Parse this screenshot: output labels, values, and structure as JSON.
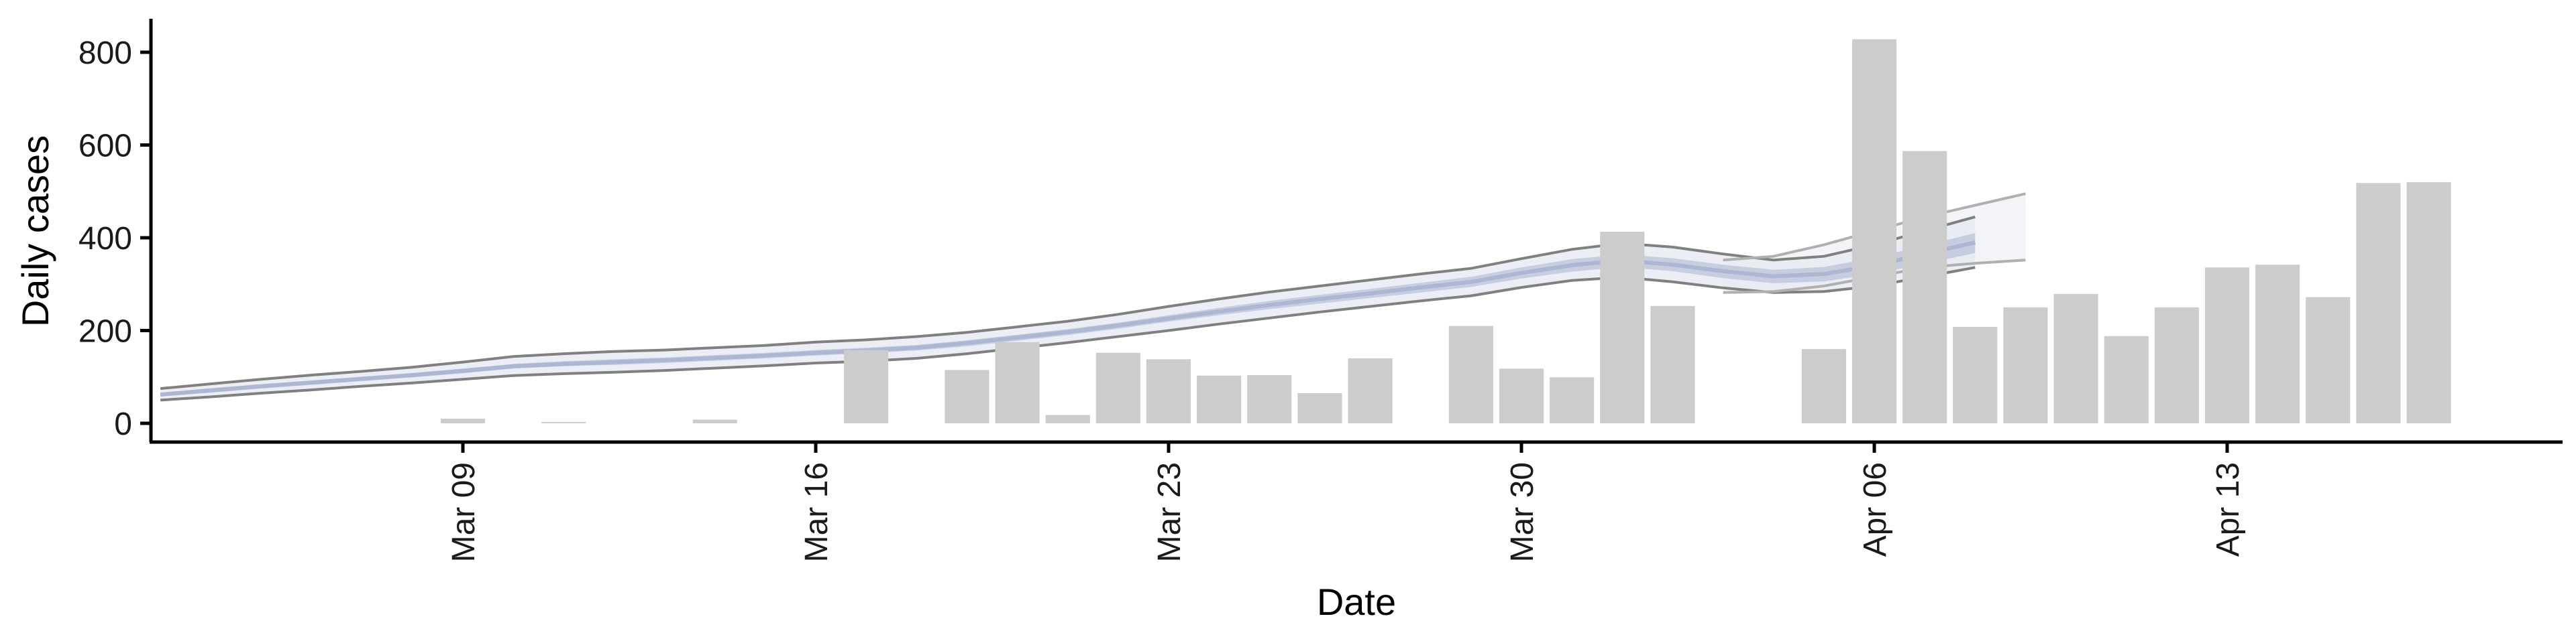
{
  "chart_data": {
    "type": "bar",
    "title": "",
    "xlabel": "Date",
    "ylabel": "Daily cases",
    "x_start": "2020-03-03",
    "ylim": [
      -40,
      870
    ],
    "y_ticks": [
      0,
      200,
      400,
      600,
      800
    ],
    "x_ticks": [
      {
        "date": "2020-03-09",
        "label": "Mar 09"
      },
      {
        "date": "2020-03-16",
        "label": "Mar 16"
      },
      {
        "date": "2020-03-23",
        "label": "Mar 23"
      },
      {
        "date": "2020-03-30",
        "label": "Mar 30"
      },
      {
        "date": "2020-04-06",
        "label": "Apr 06"
      },
      {
        "date": "2020-04-13",
        "label": "Apr 13"
      }
    ],
    "grid": false,
    "legend": "none",
    "bars": {
      "name": "",
      "color": "#cccccc",
      "points": [
        {
          "x": "2020-03-09",
          "y": 10
        },
        {
          "x": "2020-03-11",
          "y": 3
        },
        {
          "x": "2020-03-14",
          "y": 8
        },
        {
          "x": "2020-03-17",
          "y": 158
        },
        {
          "x": "2020-03-19",
          "y": 115
        },
        {
          "x": "2020-03-20",
          "y": 175
        },
        {
          "x": "2020-03-21",
          "y": 18
        },
        {
          "x": "2020-03-22",
          "y": 152
        },
        {
          "x": "2020-03-23",
          "y": 138
        },
        {
          "x": "2020-03-24",
          "y": 103
        },
        {
          "x": "2020-03-25",
          "y": 104
        },
        {
          "x": "2020-03-26",
          "y": 65
        },
        {
          "x": "2020-03-27",
          "y": 140
        },
        {
          "x": "2020-03-29",
          "y": 210
        },
        {
          "x": "2020-03-30",
          "y": 118
        },
        {
          "x": "2020-03-31",
          "y": 99
        },
        {
          "x": "2020-04-01",
          "y": 413
        },
        {
          "x": "2020-04-02",
          "y": 253
        },
        {
          "x": "2020-04-05",
          "y": 160
        },
        {
          "x": "2020-04-06",
          "y": 828
        },
        {
          "x": "2020-04-07",
          "y": 587
        },
        {
          "x": "2020-04-08",
          "y": 208
        },
        {
          "x": "2020-04-09",
          "y": 250
        },
        {
          "x": "2020-04-10",
          "y": 279
        },
        {
          "x": "2020-04-11",
          "y": 188
        },
        {
          "x": "2020-04-12",
          "y": 250
        },
        {
          "x": "2020-04-13",
          "y": 336
        },
        {
          "x": "2020-04-14",
          "y": 342
        },
        {
          "x": "2020-04-15",
          "y": 272
        },
        {
          "x": "2020-04-16",
          "y": 518
        },
        {
          "x": "2020-04-17",
          "y": 520
        }
      ]
    },
    "band": {
      "line_color": "#808080",
      "outer_color": "#e8ebf2",
      "inner_color": "#c3cade",
      "center_color": "#adb6d3",
      "x": [
        "2020-03-03",
        "2020-03-04",
        "2020-03-05",
        "2020-03-06",
        "2020-03-07",
        "2020-03-08",
        "2020-03-09",
        "2020-03-10",
        "2020-03-11",
        "2020-03-12",
        "2020-03-13",
        "2020-03-14",
        "2020-03-15",
        "2020-03-16",
        "2020-03-17",
        "2020-03-18",
        "2020-03-19",
        "2020-03-20",
        "2020-03-21",
        "2020-03-22",
        "2020-03-23",
        "2020-03-24",
        "2020-03-25",
        "2020-03-26",
        "2020-03-27",
        "2020-03-28",
        "2020-03-29",
        "2020-03-30",
        "2020-03-31",
        "2020-04-01",
        "2020-04-02",
        "2020-04-03",
        "2020-04-04",
        "2020-04-05",
        "2020-04-06",
        "2020-04-07",
        "2020-04-08"
      ],
      "upper": [
        75,
        85,
        95,
        104,
        112,
        121,
        132,
        144,
        150,
        155,
        158,
        163,
        168,
        175,
        180,
        187,
        196,
        208,
        220,
        235,
        252,
        268,
        283,
        296,
        309,
        322,
        334,
        355,
        375,
        388,
        380,
        365,
        352,
        360,
        385,
        415,
        445
      ],
      "lower": [
        50,
        57,
        65,
        72,
        80,
        87,
        95,
        103,
        107,
        110,
        114,
        119,
        124,
        130,
        134,
        140,
        150,
        162,
        174,
        187,
        200,
        214,
        227,
        240,
        252,
        264,
        275,
        293,
        308,
        315,
        305,
        292,
        282,
        284,
        296,
        316,
        336
      ],
      "center": [
        62,
        71,
        80,
        88,
        96,
        104,
        113,
        123,
        128,
        132,
        136,
        141,
        146,
        152,
        157,
        163,
        173,
        185,
        197,
        211,
        226,
        241,
        255,
        268,
        280,
        293,
        305,
        324,
        341,
        351,
        342,
        328,
        317,
        322,
        340,
        365,
        390
      ],
      "ci_inner_upper": [
        66,
        75,
        84,
        92,
        100,
        108,
        118,
        128,
        134,
        138,
        142,
        147,
        152,
        158,
        163,
        169,
        179,
        191,
        203,
        217,
        233,
        249,
        264,
        277,
        290,
        303,
        316,
        336,
        354,
        364,
        356,
        342,
        331,
        337,
        357,
        384,
        410
      ],
      "ci_inner_lower": [
        58,
        66,
        75,
        83,
        91,
        99,
        108,
        118,
        123,
        126,
        130,
        135,
        140,
        146,
        151,
        157,
        166,
        178,
        190,
        204,
        219,
        233,
        246,
        258,
        270,
        282,
        294,
        312,
        327,
        337,
        328,
        313,
        302,
        306,
        322,
        344,
        367
      ],
      "forecast_start": "2020-04-03",
      "forecast_upper": [
        352,
        360,
        385,
        415,
        445,
        470,
        495
      ],
      "forecast_lower": [
        282,
        284,
        296,
        316,
        336,
        345,
        352
      ],
      "forecast_x": [
        "2020-04-03",
        "2020-04-04",
        "2020-04-05",
        "2020-04-06",
        "2020-04-07",
        "2020-04-08",
        "2020-04-09"
      ]
    }
  }
}
